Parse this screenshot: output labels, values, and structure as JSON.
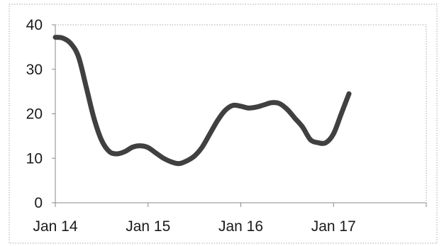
{
  "chart_data": {
    "type": "line",
    "title": "",
    "xlabel": "",
    "ylabel": "",
    "x_ticks": [
      "Jan 14",
      "Jan 15",
      "Jan 16",
      "Jan 17"
    ],
    "y_ticks": [
      "0",
      "10",
      "20",
      "30",
      "40"
    ],
    "ylim": [
      0,
      40
    ],
    "xlim": [
      "2014-01",
      "2018-01"
    ],
    "grid": false,
    "legend": "none",
    "series": [
      {
        "color": "#404040",
        "x": [
          "2014-01",
          "2014-02",
          "2014-03",
          "2014-04",
          "2014-05",
          "2014-06",
          "2014-07",
          "2014-08",
          "2014-09",
          "2014-10",
          "2014-11",
          "2014-12",
          "2015-01",
          "2015-02",
          "2015-03",
          "2015-04",
          "2015-05",
          "2015-06",
          "2015-07",
          "2015-08",
          "2015-09",
          "2015-10",
          "2015-11",
          "2015-12",
          "2016-01",
          "2016-02",
          "2016-03",
          "2016-04",
          "2016-05",
          "2016-06",
          "2016-07",
          "2016-08",
          "2016-09",
          "2016-10",
          "2016-11",
          "2016-12",
          "2017-01",
          "2017-02",
          "2017-03"
        ],
        "values": [
          37.2,
          37.0,
          35.8,
          32.8,
          26.0,
          19.0,
          14.0,
          11.5,
          11.0,
          11.5,
          12.5,
          12.8,
          12.4,
          11.2,
          10.0,
          9.2,
          8.8,
          9.4,
          10.5,
          12.5,
          15.5,
          18.5,
          20.8,
          21.9,
          21.7,
          21.3,
          21.5,
          22.0,
          22.5,
          22.3,
          21.0,
          19.0,
          17.0,
          14.2,
          13.5,
          13.5,
          15.5,
          20.0,
          24.5
        ]
      }
    ]
  }
}
